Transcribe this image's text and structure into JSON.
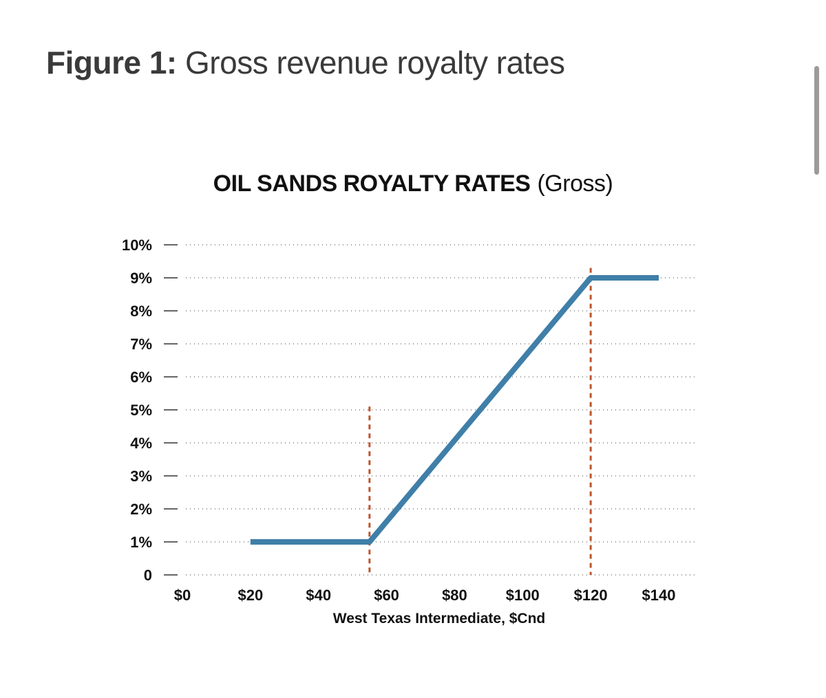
{
  "figure": {
    "label": "Figure 1:",
    "caption": "Gross revenue royalty rates"
  },
  "chart_data": {
    "type": "line",
    "title": "OIL SANDS ROYALTY RATES",
    "title_suffix": "(Gross)",
    "xlabel": "West Texas Intermediate, $Cnd",
    "ylabel": "",
    "xlim": [
      0,
      140
    ],
    "ylim": [
      0,
      10
    ],
    "x_tick_values": [
      0,
      20,
      40,
      60,
      80,
      100,
      120,
      140
    ],
    "x_tick_labels": [
      "$0",
      "$20",
      "$40",
      "$60",
      "$80",
      "$100",
      "$120",
      "$140"
    ],
    "y_tick_values": [
      0,
      1,
      2,
      3,
      4,
      5,
      6,
      7,
      8,
      9,
      10
    ],
    "y_tick_labels": [
      "0",
      "1%",
      "2%",
      "3%",
      "4%",
      "5%",
      "6%",
      "7%",
      "8%",
      "9%",
      "10%"
    ],
    "series": [
      {
        "name": "Gross royalty rate",
        "color": "#3f7fa8",
        "x": [
          20,
          55,
          120,
          140
        ],
        "y": [
          1,
          1,
          9,
          9
        ]
      }
    ],
    "reference_lines": [
      {
        "x": 55,
        "y_top": 5.1,
        "color": "#c0542a"
      },
      {
        "x": 120,
        "y_top": 9.3,
        "color": "#c0542a"
      }
    ],
    "grid": true
  }
}
